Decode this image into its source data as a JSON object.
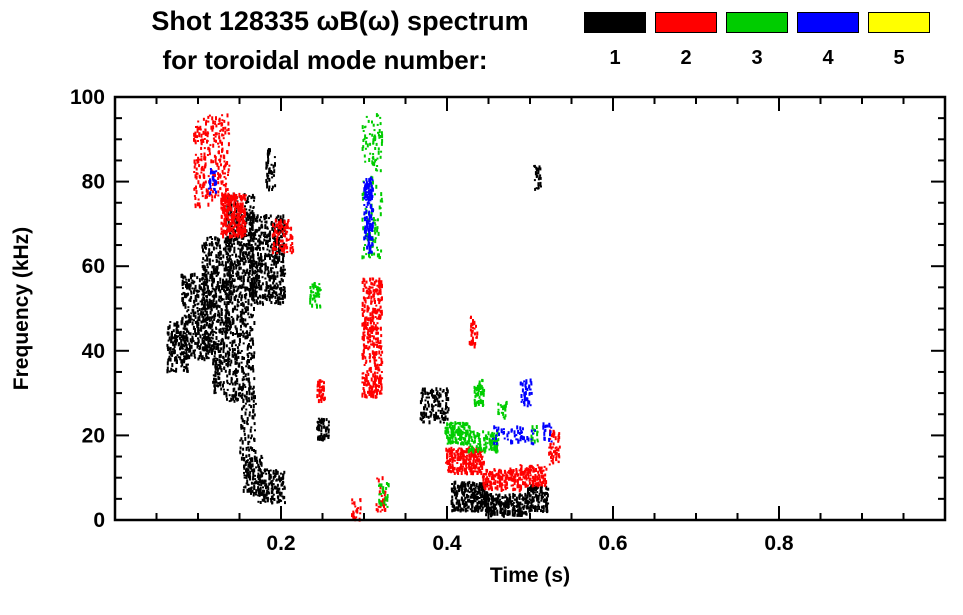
{
  "header": {
    "title_line1": "Shot 128335 ωB(ω) spectrum",
    "title_line2": "for toroidal mode number:"
  },
  "legend": {
    "items": [
      {
        "label": "1",
        "color": "#000000"
      },
      {
        "label": "2",
        "color": "#ff0000"
      },
      {
        "label": "3",
        "color": "#00cc00"
      },
      {
        "label": "4",
        "color": "#0000ff"
      },
      {
        "label": "5",
        "color": "#ffff00"
      }
    ]
  },
  "chart_data": {
    "type": "scatter",
    "title": "Shot 128335 ωB(ω) spectrum for toroidal mode number: 1 2 3 4 5",
    "xlabel": "Time (s)",
    "ylabel": "Frequency (kHz)",
    "xlim": [
      0,
      1
    ],
    "ylim": [
      0,
      100
    ],
    "grid": false,
    "legend_position": "top-right",
    "xticks": [
      {
        "v": 0.2,
        "label": "0.2"
      },
      {
        "v": 0.4,
        "label": "0.4"
      },
      {
        "v": 0.6,
        "label": "0.6"
      },
      {
        "v": 0.8,
        "label": "0.8"
      }
    ],
    "yticks": [
      {
        "v": 0,
        "label": "0"
      },
      {
        "v": 20,
        "label": "20"
      },
      {
        "v": 40,
        "label": "40"
      },
      {
        "v": 60,
        "label": "60"
      },
      {
        "v": 80,
        "label": "80"
      },
      {
        "v": 100,
        "label": "100"
      }
    ],
    "x_minor_step": 0.05,
    "y_minor_step": 5,
    "series": [
      {
        "name": "toroidal mode n=1",
        "label": "1",
        "color": "#000000",
        "clusters": [
          {
            "t": [
              0.063,
              0.088
            ],
            "f": [
              35,
              47
            ],
            "n": 160
          },
          {
            "t": [
              0.08,
              0.118
            ],
            "f": [
              38,
              58
            ],
            "n": 350
          },
          {
            "t": [
              0.105,
              0.14
            ],
            "f": [
              40,
              67
            ],
            "n": 400
          },
          {
            "t": [
              0.118,
              0.132
            ],
            "f": [
              30,
              42
            ],
            "n": 90
          },
          {
            "t": [
              0.133,
              0.168
            ],
            "f": [
              28,
              77
            ],
            "n": 700
          },
          {
            "t": [
              0.16,
              0.205
            ],
            "f": [
              51,
              72
            ],
            "n": 500
          },
          {
            "t": [
              0.15,
              0.17
            ],
            "f": [
              14,
              30
            ],
            "n": 70
          },
          {
            "t": [
              0.182,
              0.193
            ],
            "f": [
              78,
              88
            ],
            "n": 45
          },
          {
            "t": [
              0.155,
              0.178
            ],
            "f": [
              6,
              15
            ],
            "n": 120
          },
          {
            "t": [
              0.172,
              0.205
            ],
            "f": [
              4,
              12
            ],
            "n": 150
          },
          {
            "t": [
              0.243,
              0.258
            ],
            "f": [
              19,
              24
            ],
            "n": 60
          },
          {
            "t": [
              0.368,
              0.402
            ],
            "f": [
              23,
              31
            ],
            "n": 130
          },
          {
            "t": [
              0.405,
              0.45
            ],
            "f": [
              2,
              9
            ],
            "n": 280
          },
          {
            "t": [
              0.445,
              0.5
            ],
            "f": [
              1,
              6
            ],
            "n": 260
          },
          {
            "t": [
              0.497,
              0.522
            ],
            "f": [
              2,
              8
            ],
            "n": 120
          },
          {
            "t": [
              0.505,
              0.514
            ],
            "f": [
              78,
              84
            ],
            "n": 25
          }
        ]
      },
      {
        "name": "toroidal mode n=2",
        "label": "2",
        "color": "#ff0000",
        "clusters": [
          {
            "t": [
              0.095,
              0.138
            ],
            "f": [
              74,
              96
            ],
            "n": 260
          },
          {
            "t": [
              0.128,
              0.158
            ],
            "f": [
              67,
              77
            ],
            "n": 280
          },
          {
            "t": [
              0.19,
              0.215
            ],
            "f": [
              63,
              71
            ],
            "n": 90
          },
          {
            "t": [
              0.243,
              0.253
            ],
            "f": [
              28,
              33
            ],
            "n": 45
          },
          {
            "t": [
              0.298,
              0.322
            ],
            "f": [
              29,
              57
            ],
            "n": 380
          },
          {
            "t": [
              0.285,
              0.296
            ],
            "f": [
              0,
              5
            ],
            "n": 25
          },
          {
            "t": [
              0.315,
              0.326
            ],
            "f": [
              2,
              10
            ],
            "n": 30
          },
          {
            "t": [
              0.398,
              0.445
            ],
            "f": [
              11,
              17
            ],
            "n": 230
          },
          {
            "t": [
              0.443,
              0.49
            ],
            "f": [
              7,
              12
            ],
            "n": 170
          },
          {
            "t": [
              0.488,
              0.52
            ],
            "f": [
              8,
              13
            ],
            "n": 110
          },
          {
            "t": [
              0.523,
              0.536
            ],
            "f": [
              13,
              21
            ],
            "n": 55
          },
          {
            "t": [
              0.427,
              0.437
            ],
            "f": [
              41,
              48
            ],
            "n": 35
          }
        ]
      },
      {
        "name": "toroidal mode n=3",
        "label": "3",
        "color": "#00cc00",
        "clusters": [
          {
            "t": [
              0.235,
              0.248
            ],
            "f": [
              50,
              56
            ],
            "n": 45
          },
          {
            "t": [
              0.298,
              0.322
            ],
            "f": [
              62,
              96
            ],
            "n": 150
          },
          {
            "t": [
              0.318,
              0.33
            ],
            "f": [
              3,
              9
            ],
            "n": 25
          },
          {
            "t": [
              0.398,
              0.428
            ],
            "f": [
              18,
              23
            ],
            "n": 130
          },
          {
            "t": [
              0.426,
              0.462
            ],
            "f": [
              16,
              21
            ],
            "n": 110
          },
          {
            "t": [
              0.432,
              0.446
            ],
            "f": [
              27,
              33
            ],
            "n": 50
          },
          {
            "t": [
              0.46,
              0.472
            ],
            "f": [
              24,
              28
            ],
            "n": 20
          },
          {
            "t": [
              0.5,
              0.512
            ],
            "f": [
              18,
              22
            ],
            "n": 15
          }
        ]
      },
      {
        "name": "toroidal mode n=4",
        "label": "4",
        "color": "#0000ff",
        "clusters": [
          {
            "t": [
              0.113,
              0.122
            ],
            "f": [
              77,
              83
            ],
            "n": 30
          },
          {
            "t": [
              0.3,
              0.311
            ],
            "f": [
              63,
              81
            ],
            "n": 160
          },
          {
            "t": [
              0.488,
              0.502
            ],
            "f": [
              27,
              33
            ],
            "n": 40
          },
          {
            "t": [
              0.455,
              0.506
            ],
            "f": [
              18,
              22
            ],
            "n": 55
          },
          {
            "t": [
              0.515,
              0.526
            ],
            "f": [
              18,
              23
            ],
            "n": 20
          }
        ]
      },
      {
        "name": "toroidal mode n=5",
        "label": "5",
        "color": "#ffff00",
        "clusters": []
      }
    ]
  }
}
